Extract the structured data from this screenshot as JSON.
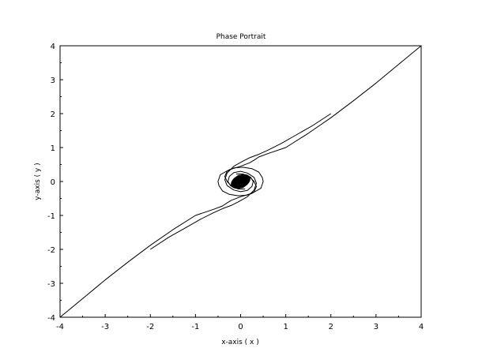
{
  "chart_data": {
    "type": "line",
    "title": "Phase Portrait",
    "xlabel": "x-axis ( x )",
    "ylabel": "y-axis ( y )",
    "xlim": [
      -4,
      4
    ],
    "ylim": [
      -4,
      4
    ],
    "x_ticks": [
      "-4",
      "-3",
      "-2",
      "-1",
      "0",
      "1",
      "2",
      "3",
      "4"
    ],
    "y_ticks": [
      "-4",
      "-3",
      "-2",
      "-1",
      "0",
      "1",
      "2",
      "3",
      "4"
    ],
    "grid": false,
    "legend": "none",
    "line_color": "#000000",
    "series": [
      {
        "x": [
          -4.0,
          -3.5,
          -3.0,
          -2.5,
          -2.0,
          -1.5,
          -1.0,
          -0.6,
          -0.4,
          -0.3,
          -0.2,
          0.0,
          0.25,
          0.45,
          0.5,
          0.48,
          0.4,
          0.25,
          0.05,
          -0.15,
          -0.3,
          -0.35,
          -0.3,
          -0.2,
          -0.05,
          0.1
        ],
        "y": [
          -4.0,
          -3.45,
          -2.9,
          -2.38,
          -1.88,
          -1.42,
          -1.0,
          -0.82,
          -0.72,
          -0.63,
          -0.55,
          -0.45,
          -0.35,
          -0.2,
          0.0,
          0.12,
          0.28,
          0.38,
          0.42,
          0.4,
          0.3,
          0.15,
          0.0,
          -0.14,
          -0.22,
          -0.22
        ]
      },
      {
        "x": [
          4.0,
          3.5,
          3.0,
          2.5,
          2.0,
          1.5,
          1.0,
          0.6,
          0.4,
          0.3,
          0.2,
          0.0,
          -0.25,
          -0.45,
          -0.5,
          -0.48,
          -0.4,
          -0.25,
          -0.05,
          0.15,
          0.3,
          0.35,
          0.3,
          0.2,
          0.05,
          -0.1
        ],
        "y": [
          4.0,
          3.45,
          2.9,
          2.38,
          1.88,
          1.42,
          1.0,
          0.82,
          0.72,
          0.63,
          0.55,
          0.45,
          0.35,
          0.2,
          0.0,
          -0.12,
          -0.28,
          -0.38,
          -0.42,
          -0.4,
          -0.3,
          -0.15,
          0.0,
          0.14,
          0.22,
          0.22
        ]
      },
      {
        "x": [
          -2.0,
          -1.6,
          -1.2,
          -0.9,
          -0.6,
          -0.4,
          -0.2,
          -0.05,
          0.15,
          0.3,
          0.35,
          0.3,
          0.15,
          0.0,
          -0.15,
          -0.25,
          -0.28,
          -0.22,
          -0.1,
          0.05,
          0.15
        ],
        "y": [
          -2.0,
          -1.65,
          -1.35,
          -1.12,
          -0.92,
          -0.8,
          -0.7,
          -0.6,
          -0.45,
          -0.25,
          -0.05,
          0.12,
          0.25,
          0.3,
          0.26,
          0.15,
          0.0,
          -0.13,
          -0.2,
          -0.18,
          -0.08
        ]
      },
      {
        "x": [
          2.0,
          1.6,
          1.2,
          0.9,
          0.6,
          0.4,
          0.2,
          0.05,
          -0.15,
          -0.3,
          -0.35,
          -0.3,
          -0.15,
          0.0,
          0.15,
          0.25,
          0.28,
          0.22,
          0.1,
          -0.05,
          -0.15
        ],
        "y": [
          2.0,
          1.65,
          1.35,
          1.12,
          0.92,
          0.8,
          0.7,
          0.6,
          0.45,
          0.25,
          0.05,
          -0.12,
          -0.25,
          -0.3,
          -0.26,
          -0.15,
          0.0,
          0.13,
          0.2,
          0.18,
          0.08
        ]
      }
    ]
  }
}
